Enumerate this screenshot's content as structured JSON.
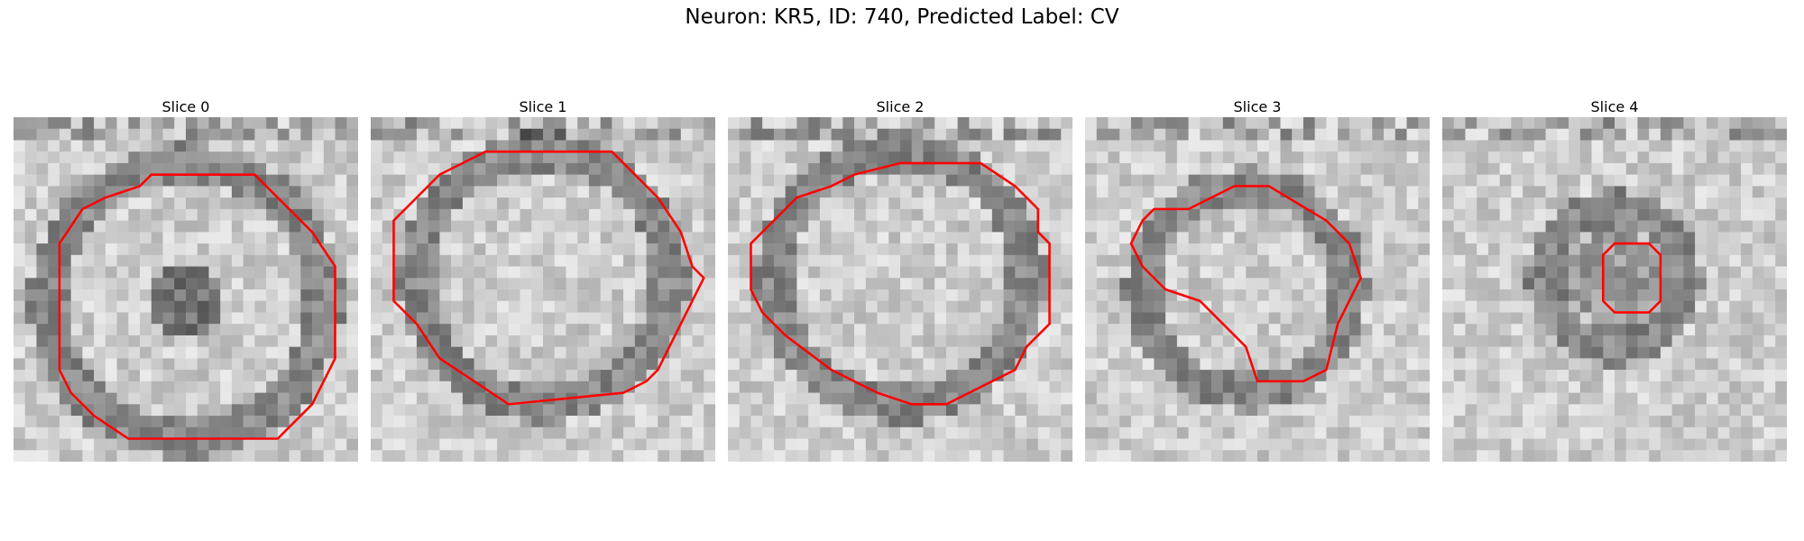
{
  "figure": {
    "title": "Neuron: KR5, ID: 740, Predicted Label: CV"
  },
  "slices": [
    {
      "title": "Slice 0"
    },
    {
      "title": "Slice 1"
    },
    {
      "title": "Slice 2"
    },
    {
      "title": "Slice 3"
    },
    {
      "title": "Slice 4"
    }
  ],
  "colors": {
    "contour": "#ff0000",
    "colormap": "grayscale"
  }
}
